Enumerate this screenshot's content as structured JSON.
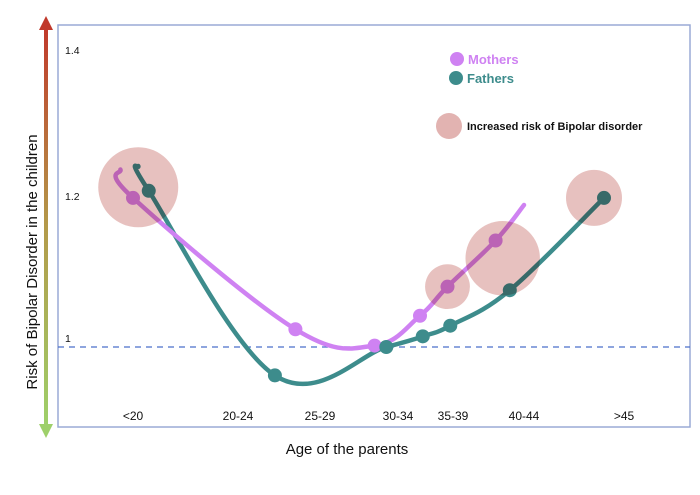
{
  "chart_data": {
    "type": "line",
    "title": "",
    "xlabel": "Age of the parents",
    "ylabel": "Risk of Bipolar Disorder in the children",
    "categories": [
      "<20",
      "20-24",
      "25-29",
      "30-34",
      "35-39",
      "40-44",
      ">45"
    ],
    "yticks": [
      {
        "value": 1.4,
        "label": "1.4"
      },
      {
        "value": 1.2,
        "label": "1.2"
      },
      {
        "value": 1.0,
        "label": "1"
      }
    ],
    "ylim": [
      0.91,
      1.5
    ],
    "reference_line": {
      "value": 1.0,
      "style": "dashed",
      "color": "#4a6fc9"
    },
    "series": [
      {
        "name": "Mothers",
        "color": "#cf82f2",
        "highlight_color": "#c45fbf",
        "x": [
          0,
          1.7,
          2.7,
          3.4,
          3.9,
          4.6
        ],
        "values": [
          1.21,
          1.025,
          1.002,
          1.044,
          1.085,
          1.15
        ],
        "line_start": {
          "x": -0.12,
          "y": 1.25
        },
        "line_end": {
          "x": 5.0,
          "y": 1.2
        }
      },
      {
        "name": "Fathers",
        "color": "#3d8c8c",
        "highlight_color": "#3d6664",
        "x": [
          0.15,
          1.45,
          2.85,
          3.45,
          3.95,
          4.8,
          5.8
        ],
        "values": [
          1.22,
          0.96,
          1.0,
          1.015,
          1.03,
          1.08,
          1.21
        ],
        "line_start": {
          "x": 0.05,
          "y": 1.255
        }
      }
    ],
    "bubbles": {
      "label": "Increased risk of Bipolar disorder",
      "color": "#e2b3b1",
      "items": [
        {
          "x": 0.05,
          "y": 1.225,
          "relative_size": 1.0
        },
        {
          "x": 3.9,
          "y": 1.085,
          "relative_size": 0.56
        },
        {
          "x": 4.7,
          "y": 1.125,
          "relative_size": 0.93
        },
        {
          "x": 5.7,
          "y": 1.21,
          "relative_size": 0.7
        }
      ]
    },
    "legend": {
      "position": "top-right",
      "entries": [
        {
          "label": "Mothers",
          "color": "#cf82f2"
        },
        {
          "label": "Fathers",
          "color": "#3d8c8c"
        },
        {
          "label": "Increased risk of Bipolar disorder",
          "color": "#e2b3b1"
        }
      ]
    },
    "side_arrow": {
      "top_color": "#c0392b",
      "bottom_color": "#9ed06a",
      "meaning": "risk increases upward"
    }
  }
}
